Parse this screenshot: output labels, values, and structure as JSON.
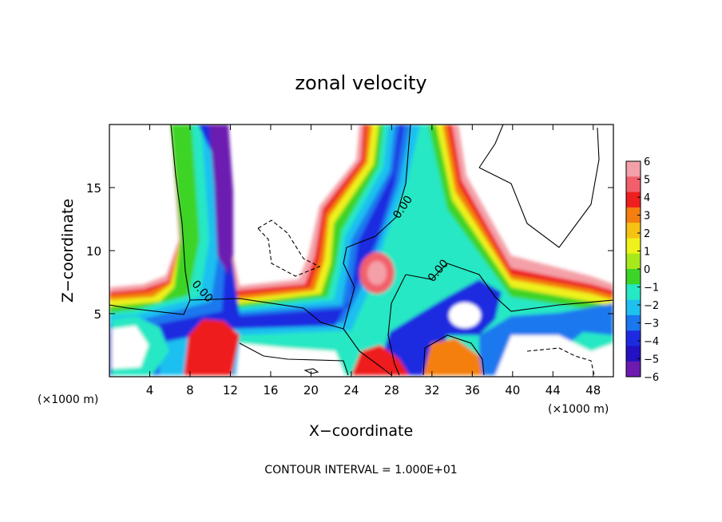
{
  "chart_data": {
    "type": "heatmap",
    "title": "zonal velocity",
    "xlabel": "X−coordinate",
    "ylabel": "Z−coordinate",
    "x_unit_left": "(×1000 m)",
    "x_unit_right": "(×1000 m)",
    "xlim": [
      0,
      50
    ],
    "ylim": [
      0,
      20
    ],
    "x_ticks": [
      4,
      8,
      12,
      16,
      20,
      24,
      28,
      32,
      36,
      40,
      44,
      48
    ],
    "x_tick_labels": [
      "4",
      "8",
      "12",
      "16",
      "20",
      "24",
      "28",
      "32",
      "36",
      "40",
      "44",
      "48"
    ],
    "y_ticks": [
      5,
      10,
      15
    ],
    "y_tick_labels": [
      "5",
      "10",
      "15"
    ],
    "colorbar": {
      "levels": [
        6,
        5,
        4,
        3,
        2,
        1,
        0,
        -1,
        -2,
        -3,
        -4,
        -5,
        -6
      ],
      "labels": [
        "6",
        "5",
        "4",
        "3",
        "2",
        "1",
        "0",
        "−1",
        "−2",
        "−3",
        "−4",
        "−5",
        "−6"
      ],
      "colors": [
        "#f4a0a8",
        "#f25f6a",
        "#ee1f1f",
        "#f47f10",
        "#f6c213",
        "#eef21a",
        "#a8e91b",
        "#3dd428",
        "#25e8c4",
        "#1ec0f0",
        "#1a78ee",
        "#1d2be0",
        "#2311c2",
        "#6c1ab0"
      ]
    },
    "contour_labels": [
      "0.00",
      "0.00",
      "0.00"
    ],
    "note": "CONTOUR INTERVAL = 1.000E+01"
  }
}
